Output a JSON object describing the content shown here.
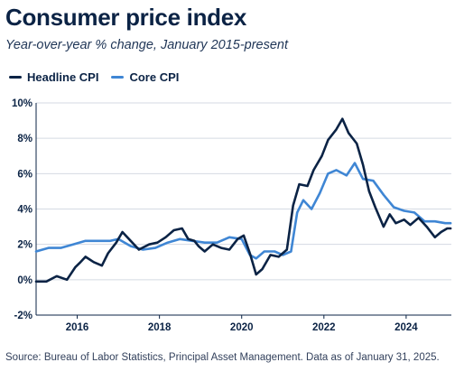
{
  "title": "Consumer price index",
  "subtitle": "Year-over-year % change, January 2015-present",
  "source": "Source: Bureau of Labor Statistics, Principal Asset Management. Data as of January 31, 2025.",
  "colors": {
    "headline": "#0b2345",
    "core": "#3f86d4",
    "grid": "#d4dae3",
    "axis": "#0b2345"
  },
  "chart_data": {
    "type": "line",
    "x_unit": "year",
    "xlim": [
      2015.0,
      2025.1
    ],
    "ylim": [
      -2,
      10
    ],
    "y_ticks": [
      -2,
      0,
      2,
      4,
      6,
      8,
      10
    ],
    "y_tick_labels": [
      "-2%",
      "0%",
      "2%",
      "4%",
      "6%",
      "8%",
      "10%"
    ],
    "x_ticks": [
      2016,
      2018,
      2020,
      2022,
      2024
    ],
    "x_tick_labels": [
      "2016",
      "2018",
      "2020",
      "2022",
      "2024"
    ],
    "grid": true,
    "legend_position": "top-left",
    "series": [
      {
        "name": "Headline CPI",
        "color": "#0b2345",
        "points": [
          [
            2015.0,
            -0.1
          ],
          [
            2015.25,
            -0.1
          ],
          [
            2015.5,
            0.2
          ],
          [
            2015.75,
            0.0
          ],
          [
            2015.95,
            0.7
          ],
          [
            2016.08,
            1.0
          ],
          [
            2016.2,
            1.3
          ],
          [
            2016.4,
            1.0
          ],
          [
            2016.6,
            0.8
          ],
          [
            2016.75,
            1.5
          ],
          [
            2016.95,
            2.1
          ],
          [
            2017.1,
            2.7
          ],
          [
            2017.3,
            2.2
          ],
          [
            2017.5,
            1.7
          ],
          [
            2017.75,
            2.0
          ],
          [
            2017.95,
            2.1
          ],
          [
            2018.15,
            2.4
          ],
          [
            2018.35,
            2.8
          ],
          [
            2018.55,
            2.9
          ],
          [
            2018.7,
            2.3
          ],
          [
            2018.85,
            2.2
          ],
          [
            2018.95,
            1.9
          ],
          [
            2019.1,
            1.6
          ],
          [
            2019.3,
            2.0
          ],
          [
            2019.5,
            1.8
          ],
          [
            2019.7,
            1.7
          ],
          [
            2019.9,
            2.3
          ],
          [
            2020.05,
            2.5
          ],
          [
            2020.2,
            1.5
          ],
          [
            2020.35,
            0.3
          ],
          [
            2020.5,
            0.6
          ],
          [
            2020.7,
            1.4
          ],
          [
            2020.9,
            1.3
          ],
          [
            2021.1,
            1.7
          ],
          [
            2021.25,
            4.2
          ],
          [
            2021.4,
            5.4
          ],
          [
            2021.6,
            5.3
          ],
          [
            2021.75,
            6.2
          ],
          [
            2021.95,
            7.0
          ],
          [
            2022.1,
            7.9
          ],
          [
            2022.3,
            8.5
          ],
          [
            2022.45,
            9.1
          ],
          [
            2022.6,
            8.3
          ],
          [
            2022.8,
            7.7
          ],
          [
            2022.95,
            6.5
          ],
          [
            2023.1,
            5.0
          ],
          [
            2023.25,
            4.1
          ],
          [
            2023.45,
            3.0
          ],
          [
            2023.6,
            3.7
          ],
          [
            2023.75,
            3.2
          ],
          [
            2023.95,
            3.4
          ],
          [
            2024.1,
            3.1
          ],
          [
            2024.3,
            3.5
          ],
          [
            2024.5,
            3.0
          ],
          [
            2024.7,
            2.4
          ],
          [
            2024.85,
            2.7
          ],
          [
            2025.0,
            2.9
          ],
          [
            2025.08,
            2.9
          ]
        ]
      },
      {
        "name": "Core CPI",
        "color": "#3f86d4",
        "points": [
          [
            2015.0,
            1.6
          ],
          [
            2015.3,
            1.8
          ],
          [
            2015.6,
            1.8
          ],
          [
            2015.9,
            2.0
          ],
          [
            2016.2,
            2.2
          ],
          [
            2016.5,
            2.2
          ],
          [
            2016.8,
            2.2
          ],
          [
            2017.0,
            2.3
          ],
          [
            2017.3,
            1.9
          ],
          [
            2017.6,
            1.7
          ],
          [
            2017.9,
            1.8
          ],
          [
            2018.2,
            2.1
          ],
          [
            2018.5,
            2.3
          ],
          [
            2018.8,
            2.2
          ],
          [
            2019.1,
            2.1
          ],
          [
            2019.4,
            2.1
          ],
          [
            2019.7,
            2.4
          ],
          [
            2020.0,
            2.3
          ],
          [
            2020.2,
            1.4
          ],
          [
            2020.35,
            1.2
          ],
          [
            2020.55,
            1.6
          ],
          [
            2020.8,
            1.6
          ],
          [
            2021.0,
            1.4
          ],
          [
            2021.2,
            1.6
          ],
          [
            2021.35,
            3.8
          ],
          [
            2021.5,
            4.5
          ],
          [
            2021.7,
            4.0
          ],
          [
            2021.9,
            4.9
          ],
          [
            2022.1,
            6.0
          ],
          [
            2022.3,
            6.2
          ],
          [
            2022.55,
            5.9
          ],
          [
            2022.75,
            6.6
          ],
          [
            2022.95,
            5.7
          ],
          [
            2023.2,
            5.6
          ],
          [
            2023.45,
            4.8
          ],
          [
            2023.7,
            4.1
          ],
          [
            2023.95,
            3.9
          ],
          [
            2024.2,
            3.8
          ],
          [
            2024.45,
            3.3
          ],
          [
            2024.7,
            3.3
          ],
          [
            2024.95,
            3.2
          ],
          [
            2025.08,
            3.2
          ]
        ]
      }
    ]
  }
}
